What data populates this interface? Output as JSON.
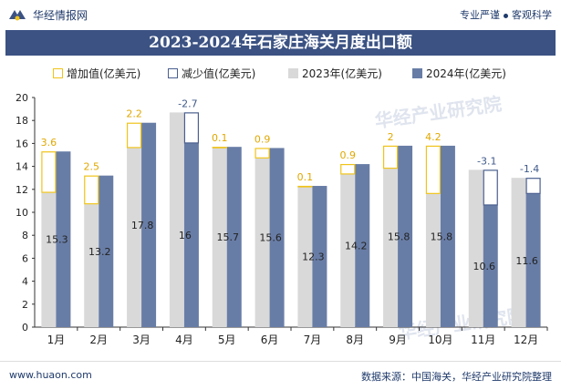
{
  "header": {
    "brand": "华经情报网",
    "tagline_left": "专业严谨",
    "tagline_right": "客观科学"
  },
  "footer": {
    "site": "www.huaon.com",
    "source": "数据来源：中国海关，华经产业研究院整理"
  },
  "watermark": "华经产业研究院",
  "colors": {
    "increase": "#f0c419",
    "decrease": "#4a5f8f",
    "y2023": "#d9d9d9",
    "y2024": "#687da6",
    "title_bg": "#3b5283"
  },
  "chart_data": {
    "type": "bar",
    "title": "2023-2024年石家庄海关月度出口额",
    "categories": [
      "1月",
      "2月",
      "3月",
      "4月",
      "5月",
      "6月",
      "7月",
      "8月",
      "9月",
      "10月",
      "11月",
      "12月"
    ],
    "series": [
      {
        "name": "增加值(亿美元)",
        "values": [
          3.6,
          2.5,
          2.2,
          null,
          0.1,
          0.9,
          0.1,
          0.9,
          2,
          4.2,
          null,
          null
        ]
      },
      {
        "name": "减少值(亿美元)",
        "values": [
          null,
          null,
          null,
          -2.7,
          null,
          null,
          null,
          null,
          null,
          null,
          -3.1,
          -1.4
        ]
      },
      {
        "name": "2023年(亿美元)",
        "values": [
          11.7,
          10.7,
          15.6,
          18.7,
          15.6,
          14.7,
          12.2,
          13.3,
          13.8,
          11.6,
          13.7,
          13.0
        ]
      },
      {
        "name": "2024年(亿美元)",
        "values": [
          15.3,
          13.2,
          17.8,
          16,
          15.7,
          15.6,
          12.3,
          14.2,
          15.8,
          15.8,
          10.6,
          11.6
        ]
      }
    ],
    "change_labels": [
      "3.6",
      "2.5",
      "2.2",
      "-2.7",
      "0.1",
      "0.9",
      "0.1",
      "0.9",
      "2",
      "4.2",
      "-3.1",
      "-1.4"
    ],
    "value_labels_2024": [
      "15.3",
      "13.2",
      "17.8",
      "16",
      "15.7",
      "15.6",
      "12.3",
      "14.2",
      "15.8",
      "15.8",
      "10.6",
      "11.6"
    ],
    "ylim": [
      0,
      20
    ],
    "yticks": [
      "0",
      "2",
      "4",
      "6",
      "8",
      "10",
      "12",
      "14",
      "16",
      "18",
      "20"
    ]
  }
}
